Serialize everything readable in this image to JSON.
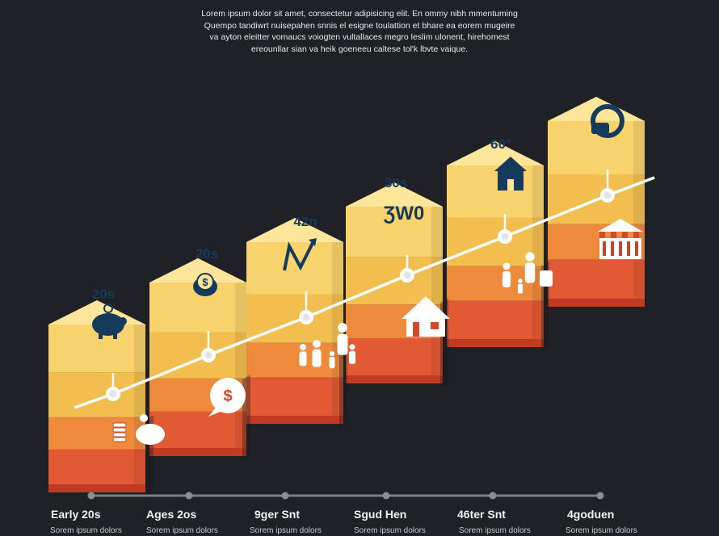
{
  "intro": {
    "lines": [
      "Lorem ipsum dolor sit amet, consectetur adipisicing elit. En ommy nibh mmentuming",
      "Quempo tandiwrt nuisepahen snnis el esigne toulattion et bhare ea eorem mugeire",
      "va ayton eleitter vomaucs voiogten vultallaces megro leslim ulonent, hirehomest",
      "ereounllar sian va heik goeneeu caltese tol'k lbvte vaique."
    ]
  },
  "steps": [
    {
      "top_label": "20s",
      "top_icon": "piggy-bank-icon",
      "front_icon": "coins-piggy-icon"
    },
    {
      "top_label": "20s",
      "top_icon": "piggy-coin-icon",
      "front_icon": "money-bubble-icon"
    },
    {
      "top_label": "42n",
      "top_icon": "growth-chart-icon",
      "front_icon": "family-icon"
    },
    {
      "top_label": "30s",
      "top_icon": "savings-text-icon",
      "top_icon_text": "ƷW0",
      "front_icon": "house-icon"
    },
    {
      "top_label": "60°",
      "top_icon": "house-dollar-icon",
      "front_icon": "family-budget-icon"
    },
    {
      "top_label": "",
      "top_icon": "money-hand-icon",
      "front_icon": "market-stall-icon"
    }
  ],
  "timeline": [
    {
      "label": "Early 20s",
      "sub": "Sorem ipsum dolors"
    },
    {
      "label": "Ages 2os",
      "sub": "Sorem ipsum dolors"
    },
    {
      "label": "9ger Snt",
      "sub": "Sorem ipsum dolors"
    },
    {
      "label": "Sgud Hen",
      "sub": "Sorem ipsum dolors"
    },
    {
      "label": "46ter Snt",
      "sub": "Sorem ipsum dolors"
    },
    {
      "label": "4goduen",
      "sub": "Sorem ipsum dolors"
    }
  ],
  "colors": {
    "background": "#1f2127",
    "top_yellow": "#f8d26c",
    "band_yellow": "#f2be50",
    "band_orange": "#ee8a3c",
    "band_red": "#e25a33",
    "base_dark": "#c13a23",
    "icon_navy": "#163a5c",
    "line_white": "#ffffff",
    "timeline_gray": "#7a7d84"
  }
}
